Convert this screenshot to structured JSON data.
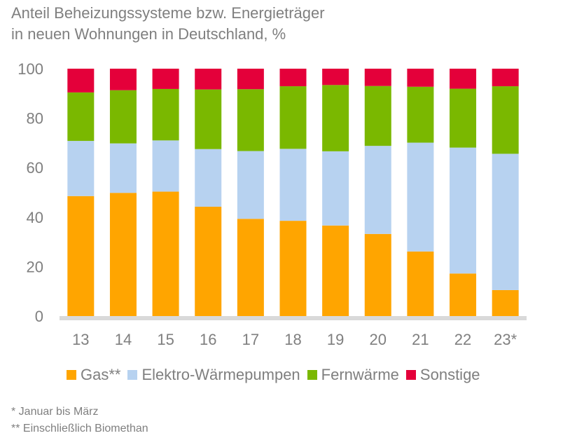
{
  "chart_data": {
    "type": "bar",
    "stacked": true,
    "title_lines": [
      "Anteil Beheizungssysteme bzw. Energieträger",
      "in neuen Wohnungen in Deutschland, %"
    ],
    "categories": [
      "13",
      "14",
      "15",
      "16",
      "17",
      "18",
      "19",
      "20",
      "21",
      "22",
      "23*"
    ],
    "series": [
      {
        "name": "Gas**",
        "color": "#ffa500",
        "values": [
          48.5,
          49.8,
          50.3,
          44.2,
          39.3,
          38.5,
          36.6,
          33.2,
          26.1,
          17.2,
          10.5
        ]
      },
      {
        "name": "Elektro-Wärmepumpen",
        "color": "#b7d2f0",
        "values": [
          22.3,
          20.0,
          20.7,
          23.3,
          27.4,
          29.1,
          30.0,
          35.6,
          44.0,
          50.9,
          55.1
        ]
      },
      {
        "name": "Fernwärme",
        "color": "#7ab800",
        "values": [
          19.6,
          21.5,
          20.8,
          24.1,
          25.0,
          25.3,
          26.8,
          24.2,
          22.6,
          23.8,
          27.3
        ]
      },
      {
        "name": "Sonstige",
        "color": "#e4003a",
        "values": [
          9.6,
          8.7,
          8.2,
          8.4,
          8.3,
          7.1,
          6.6,
          7.0,
          7.3,
          8.1,
          7.1
        ]
      }
    ],
    "y_ticks": [
      "0",
      "20",
      "40",
      "60",
      "80",
      "100"
    ],
    "ylim": [
      0,
      100
    ],
    "grid": false,
    "legend_position": "bottom"
  },
  "footnotes": [
    "* Januar bis März",
    "** Einschließlich Biomethan"
  ]
}
